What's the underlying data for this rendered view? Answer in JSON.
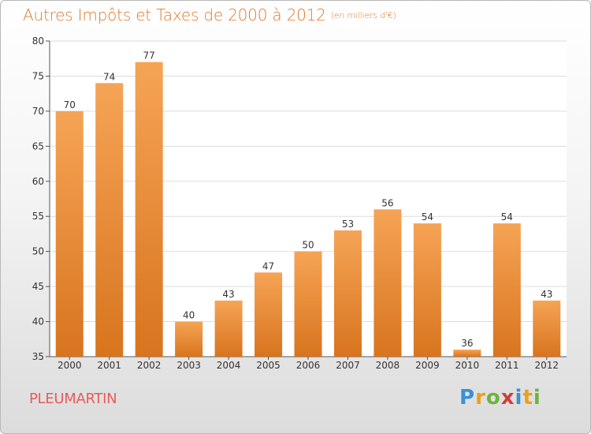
{
  "header": {
    "title": "Autres Impôts et Taxes de 2000 à 2012",
    "unit": "(en milliers d'€)"
  },
  "footer": {
    "commune": "PLEUMARTIN",
    "logo": [
      "P",
      "r",
      "o",
      "x",
      "i",
      "t",
      "i"
    ],
    "logo_colors": [
      "#3a8fd6",
      "#e8a020",
      "#6cb33e",
      "#d23c3c",
      "#3a8fd6",
      "#e8a020",
      "#6cb33e"
    ]
  },
  "colors": {
    "bar_top": "#f5a455",
    "bar_bottom": "#d8741e",
    "grid": "#dddddd",
    "title": "#e07a2c",
    "commune": "#e85a5a"
  },
  "chart_data": {
    "type": "bar",
    "title": "Autres Impôts et Taxes de 2000 à 2012",
    "subtitle": "(en milliers d'€)",
    "xlabel": "",
    "ylabel": "",
    "categories": [
      "2000",
      "2001",
      "2002",
      "2003",
      "2004",
      "2005",
      "2006",
      "2007",
      "2008",
      "2009",
      "2010",
      "2011",
      "2012"
    ],
    "values": [
      70,
      74,
      77,
      40,
      43,
      47,
      50,
      53,
      56,
      54,
      36,
      54,
      43
    ],
    "ylim": [
      35,
      80
    ],
    "yticks": [
      35,
      40,
      45,
      50,
      55,
      60,
      65,
      70,
      75,
      80
    ],
    "grid": true,
    "legend": "none"
  }
}
